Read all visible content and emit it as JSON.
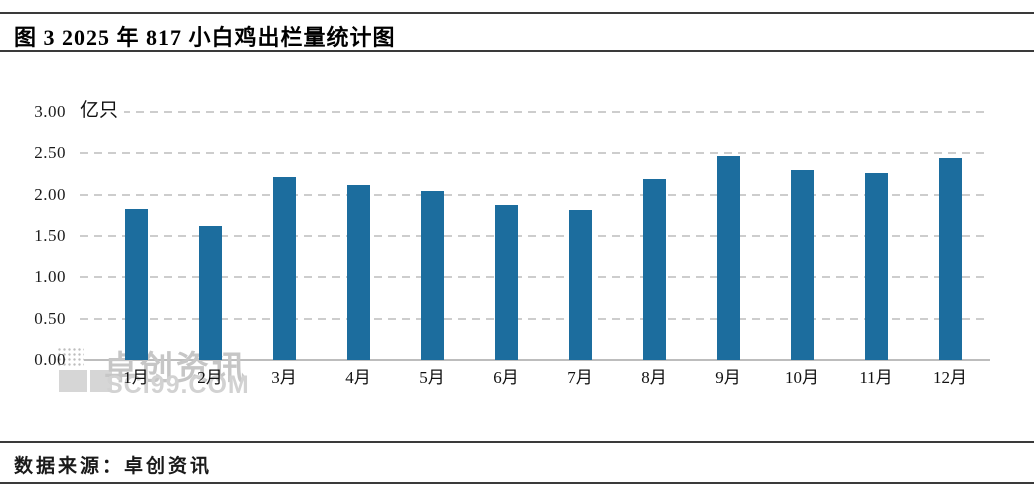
{
  "figure": {
    "title": "图 3 2025 年 817 小白鸡出栏量统计图",
    "source_note": "数据来源：卓创资讯"
  },
  "watermark": {
    "brand": "卓创资讯",
    "site": "SCI99.COM"
  },
  "chart_data": {
    "type": "bar",
    "title": "图 3 2025 年 817 小白鸡出栏量统计图",
    "unit_label": "亿只",
    "categories": [
      "1月",
      "2月",
      "3月",
      "4月",
      "5月",
      "6月",
      "7月",
      "8月",
      "9月",
      "10月",
      "11月",
      "12月"
    ],
    "values": [
      1.83,
      1.62,
      2.21,
      2.12,
      2.05,
      1.87,
      1.82,
      2.19,
      2.47,
      2.3,
      2.26,
      2.44
    ],
    "ylim": [
      0,
      3
    ],
    "ytick_values": [
      3.0,
      2.5,
      2.0,
      1.5,
      1.0,
      0.5,
      0.0
    ],
    "ytick_labels": [
      "3.00",
      "2.50",
      "2.00",
      "1.50",
      "1.00",
      "0.50",
      "0.00"
    ],
    "grid": "horizontal-dashed",
    "legend": "none",
    "bar_color": "#1c6d9e",
    "gridline_color": "#cdcdcd",
    "axis_line_color": "#bdbdbd"
  }
}
